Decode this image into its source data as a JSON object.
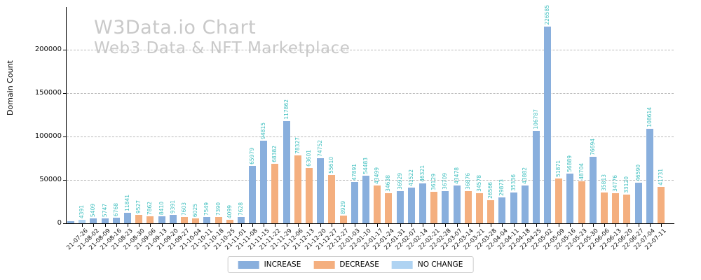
{
  "watermark": {
    "title": "W3Data.io Chart",
    "subtitle": "Web3 Data & NFT Marketplace"
  },
  "chart_data": {
    "type": "bar",
    "title": "W3Data.io Chart",
    "subtitle": "Web3 Data & NFT Marketplace",
    "ylabel": "Domain Count",
    "ylim": [
      0,
      240000
    ],
    "yticks": [
      0,
      50000,
      100000,
      150000,
      200000
    ],
    "grid": "horizontal-dashed-gray",
    "legend_position": "bottom-center",
    "legend": [
      "INCREASE",
      "DECREASE",
      "NO CHANGE"
    ],
    "series_colors": {
      "INCREASE": "#89afdd",
      "DECREASE": "#f4af7f",
      "NO CHANGE": "#afd3f2"
    },
    "value_label_color": "#3fbfbf",
    "bars": [
      {
        "date": "",
        "value": 2500,
        "series": "INCREASE",
        "label": ""
      },
      {
        "date": "21-07-26",
        "value": 4391,
        "series": "NO CHANGE",
        "label": "4391"
      },
      {
        "date": "21-08-02",
        "value": 5409,
        "series": "INCREASE",
        "label": "5409"
      },
      {
        "date": "21-08-09",
        "value": 5747,
        "series": "INCREASE",
        "label": "5747"
      },
      {
        "date": "21-08-16",
        "value": 6768,
        "series": "INCREASE",
        "label": "6768"
      },
      {
        "date": "21-08-23",
        "value": 11841,
        "series": "INCREASE",
        "label": "11841"
      },
      {
        "date": "21-08-30",
        "value": 9527,
        "series": "DECREASE",
        "label": "9527"
      },
      {
        "date": "21-09-06",
        "value": 7862,
        "series": "DECREASE",
        "label": "7862"
      },
      {
        "date": "21-09-13",
        "value": 8410,
        "series": "INCREASE",
        "label": "8410"
      },
      {
        "date": "21-09-20",
        "value": 9391,
        "series": "INCREASE",
        "label": "9391"
      },
      {
        "date": "21-09-27",
        "value": 7603,
        "series": "DECREASE",
        "label": "7603"
      },
      {
        "date": "21-10-04",
        "value": 6025,
        "series": "DECREASE",
        "label": "6025"
      },
      {
        "date": "21-10-11",
        "value": 7549,
        "series": "INCREASE",
        "label": "7549"
      },
      {
        "date": "21-10-18",
        "value": 7390,
        "series": "DECREASE",
        "label": "7390"
      },
      {
        "date": "21-10-25",
        "value": 4099,
        "series": "DECREASE",
        "label": "4099"
      },
      {
        "date": "21-11-01",
        "value": 7628,
        "series": "INCREASE",
        "label": "7628"
      },
      {
        "date": "21-11-08",
        "value": 65979,
        "series": "INCREASE",
        "label": "65979"
      },
      {
        "date": "21-11-15",
        "value": 94815,
        "series": "INCREASE",
        "label": "94815"
      },
      {
        "date": "21-11-22",
        "value": 68382,
        "series": "DECREASE",
        "label": "68382"
      },
      {
        "date": "21-11-29",
        "value": 117862,
        "series": "INCREASE",
        "label": "117862"
      },
      {
        "date": "21-12-06",
        "value": 78327,
        "series": "DECREASE",
        "label": "78327"
      },
      {
        "date": "21-12-13",
        "value": 63601,
        "series": "DECREASE",
        "label": "63601"
      },
      {
        "date": "21-12-20",
        "value": 74752,
        "series": "INCREASE",
        "label": "74752"
      },
      {
        "date": "21-12-27",
        "value": 55610,
        "series": "DECREASE",
        "label": "55610"
      },
      {
        "date": "22-12-27",
        "value": 8929,
        "series": "DECREASE",
        "label": "8929"
      },
      {
        "date": "22-01-03",
        "value": 47891,
        "series": "INCREASE",
        "label": "47891"
      },
      {
        "date": "22-01-10",
        "value": 54483,
        "series": "INCREASE",
        "label": "54483"
      },
      {
        "date": "22-01-17",
        "value": 43499,
        "series": "DECREASE",
        "label": "43499"
      },
      {
        "date": "22-01-24",
        "value": 34638,
        "series": "DECREASE",
        "label": "34638"
      },
      {
        "date": "22-01-31",
        "value": 36929,
        "series": "INCREASE",
        "label": "36929"
      },
      {
        "date": "22-02-07",
        "value": 41522,
        "series": "INCREASE",
        "label": "41522"
      },
      {
        "date": "22-02-14",
        "value": 46321,
        "series": "INCREASE",
        "label": "46321"
      },
      {
        "date": "22-02-21",
        "value": 36129,
        "series": "DECREASE",
        "label": "36129"
      },
      {
        "date": "22-02-28",
        "value": 36709,
        "series": "INCREASE",
        "label": "36709"
      },
      {
        "date": "22-03-07",
        "value": 43478,
        "series": "INCREASE",
        "label": "43478"
      },
      {
        "date": "22-03-14",
        "value": 36876,
        "series": "DECREASE",
        "label": "36876"
      },
      {
        "date": "22-03-21",
        "value": 34578,
        "series": "DECREASE",
        "label": "34578"
      },
      {
        "date": "22-03-28",
        "value": 26566,
        "series": "DECREASE",
        "label": "26566"
      },
      {
        "date": "22-04-04",
        "value": 29873,
        "series": "INCREASE",
        "label": "29873"
      },
      {
        "date": "22-04-11",
        "value": 35336,
        "series": "INCREASE",
        "label": "35336"
      },
      {
        "date": "22-04-18",
        "value": 43882,
        "series": "INCREASE",
        "label": "43882"
      },
      {
        "date": "22-04-25",
        "value": 106787,
        "series": "INCREASE",
        "label": "106787"
      },
      {
        "date": "22-05-02",
        "value": 226585,
        "series": "INCREASE",
        "label": "226585"
      },
      {
        "date": "22-05-09",
        "value": 51871,
        "series": "DECREASE",
        "label": "51871"
      },
      {
        "date": "22-05-16",
        "value": 56889,
        "series": "INCREASE",
        "label": "56889"
      },
      {
        "date": "22-05-23",
        "value": 48704,
        "series": "DECREASE",
        "label": "48704"
      },
      {
        "date": "22-05-30",
        "value": 76694,
        "series": "INCREASE",
        "label": "76694"
      },
      {
        "date": "22-06-06",
        "value": 35813,
        "series": "DECREASE",
        "label": "35813"
      },
      {
        "date": "22-06-13",
        "value": 34776,
        "series": "DECREASE",
        "label": "34776"
      },
      {
        "date": "22-06-20",
        "value": 33120,
        "series": "DECREASE",
        "label": "33120"
      },
      {
        "date": "22-06-27",
        "value": 46590,
        "series": "INCREASE",
        "label": "46590"
      },
      {
        "date": "22-07-04",
        "value": 108614,
        "series": "INCREASE",
        "label": "108614"
      },
      {
        "date": "22-07-11",
        "value": 41731,
        "series": "DECREASE",
        "label": "41731"
      }
    ]
  }
}
